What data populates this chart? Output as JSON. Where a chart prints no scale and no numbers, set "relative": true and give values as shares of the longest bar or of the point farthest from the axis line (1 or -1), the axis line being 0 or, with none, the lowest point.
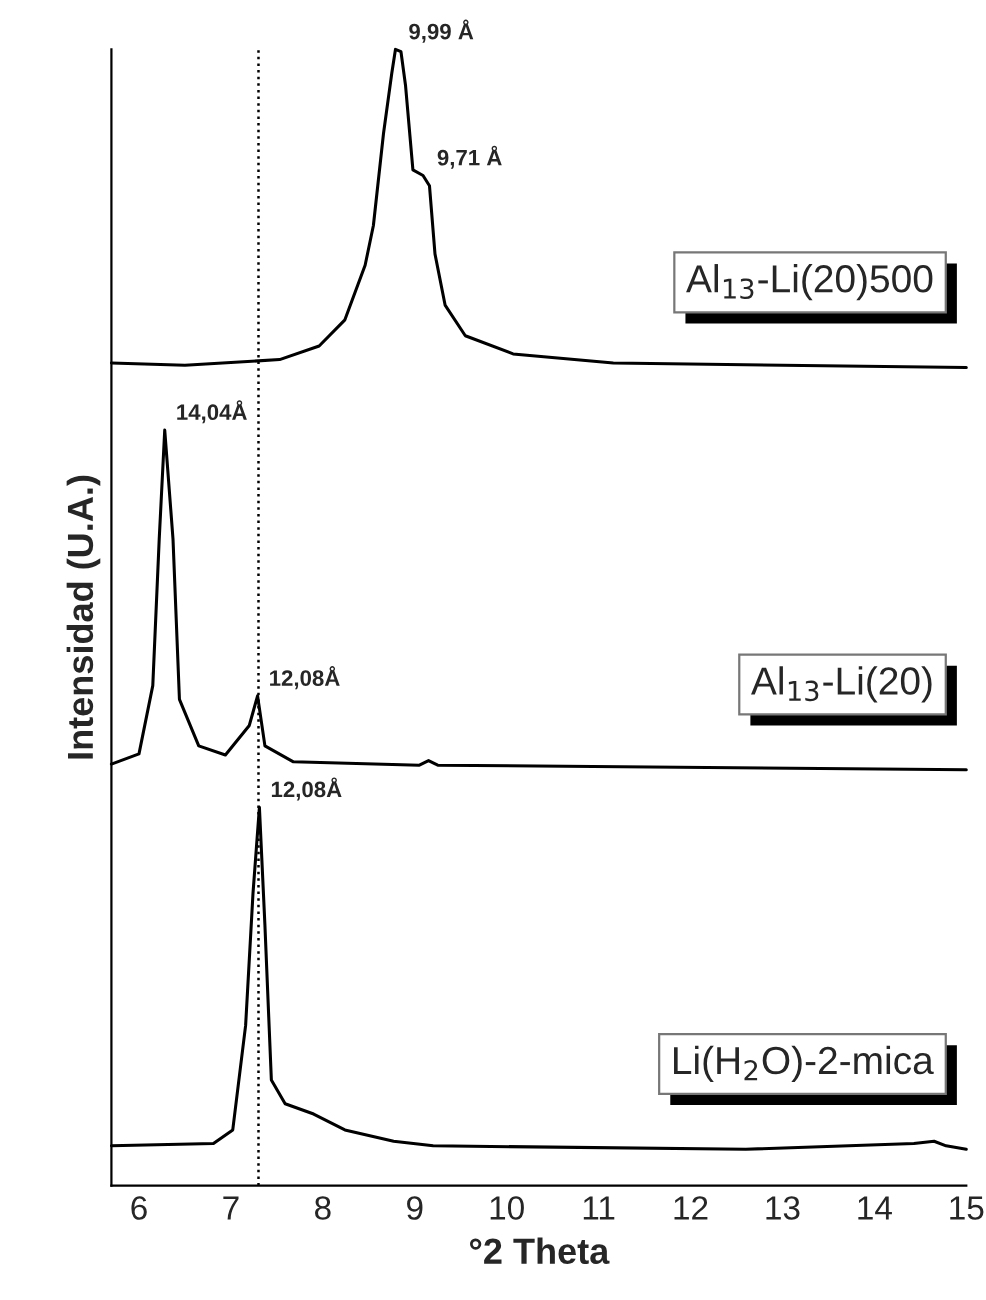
{
  "chart_data": {
    "type": "line",
    "relative": true,
    "xlabel": "°2 Theta",
    "ylabel": "Intensidad (U.A.)",
    "xlim": [
      5.7,
      15
    ],
    "xticks": [
      6,
      7,
      8,
      9,
      10,
      11,
      12,
      13,
      14,
      15
    ],
    "grid": false,
    "marker": "none",
    "line_style": "solid",
    "series": [
      {
        "name": "Al$_{13}$-Li(20)500",
        "color": "#000000",
        "x": [
          5.7,
          6.5,
          7.53,
          7.96,
          8.24,
          8.46,
          8.55,
          8.66,
          8.75,
          8.79,
          8.85,
          8.9,
          8.98,
          9.09,
          9.16,
          9.22,
          9.33,
          9.55,
          10.07,
          11.16,
          15
        ],
        "values": [
          0.724,
          0.722,
          0.727,
          0.739,
          0.762,
          0.81,
          0.845,
          0.926,
          0.979,
          1.0,
          0.998,
          0.968,
          0.894,
          0.889,
          0.88,
          0.82,
          0.775,
          0.748,
          0.732,
          0.724,
          0.72
        ]
      },
      {
        "name": "Al$_{13}$-Li(20)",
        "color": "#000000",
        "x": [
          5.7,
          6.0,
          6.15,
          6.22,
          6.28,
          6.37,
          6.44,
          6.65,
          6.94,
          7.2,
          7.29,
          7.37,
          7.68,
          9.05,
          9.15,
          9.25,
          15
        ],
        "values": [
          0.371,
          0.38,
          0.44,
          0.569,
          0.665,
          0.569,
          0.428,
          0.387,
          0.379,
          0.405,
          0.431,
          0.387,
          0.373,
          0.37,
          0.374,
          0.37,
          0.366
        ]
      },
      {
        "name": "Li(H$_{2}$O)-2-mica",
        "color": "#000000",
        "x": [
          5.7,
          6.81,
          7.02,
          7.16,
          7.24,
          7.31,
          7.37,
          7.44,
          7.59,
          7.9,
          8.24,
          8.77,
          9.2,
          12.6,
          14.43,
          14.65,
          14.78,
          15
        ],
        "values": [
          0.035,
          0.037,
          0.049,
          0.141,
          0.257,
          0.333,
          0.229,
          0.093,
          0.072,
          0.063,
          0.049,
          0.039,
          0.035,
          0.032,
          0.037,
          0.039,
          0.035,
          0.032
        ]
      }
    ],
    "ref_lines": [
      {
        "axis": "x",
        "value": 7.3,
        "line_style": "dotted",
        "color": "#000000"
      }
    ],
    "annotations": [
      {
        "text": "9,99 Å",
        "x": 8.81,
        "y": 1.0
      },
      {
        "text": "9,71 Å",
        "x": 9.12,
        "y": 0.889
      },
      {
        "text": "14,04Å",
        "x": 6.28,
        "y": 0.665
      },
      {
        "text": "12,08Å",
        "x": 7.29,
        "y": 0.431
      },
      {
        "text": "12,08Å",
        "x": 7.31,
        "y": 0.333
      }
    ]
  }
}
